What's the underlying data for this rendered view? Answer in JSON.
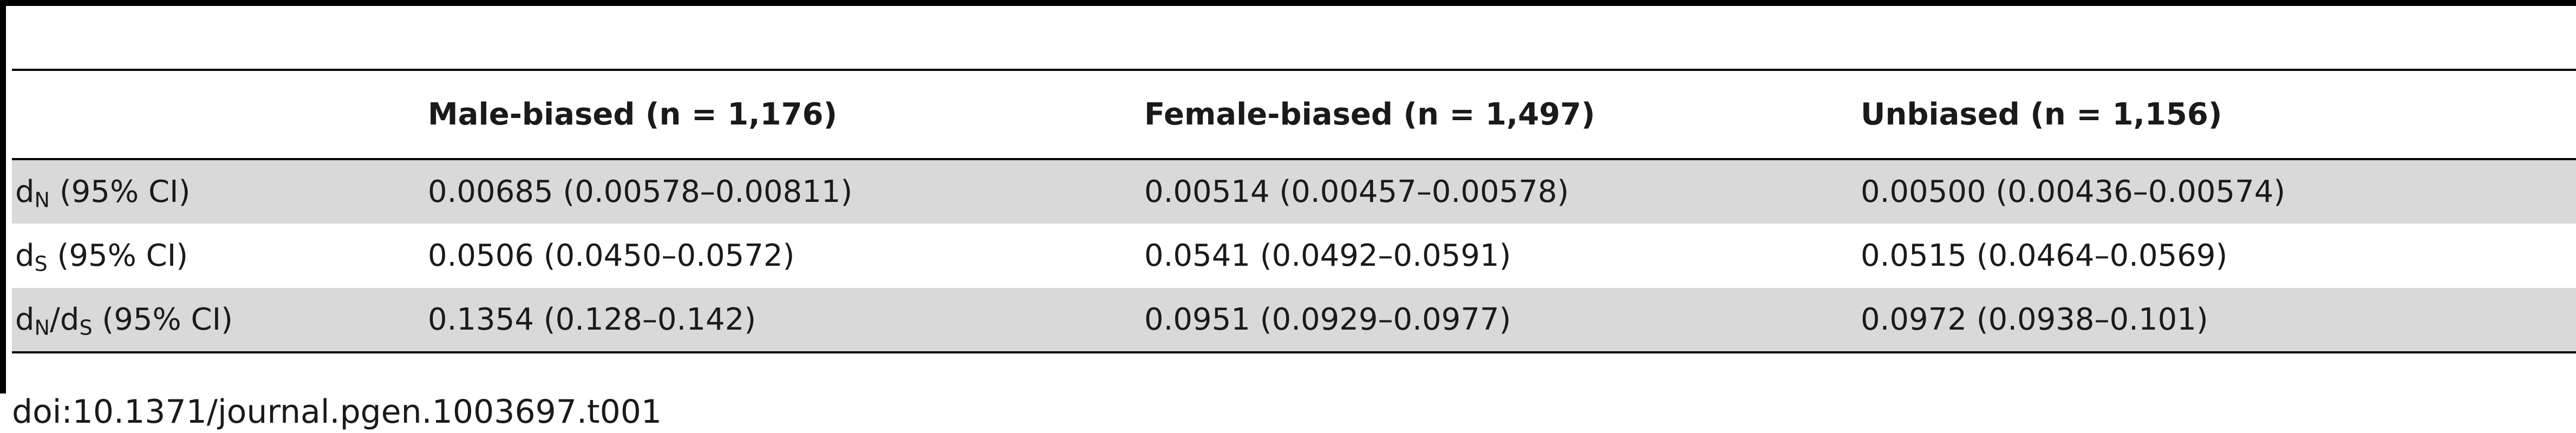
{
  "table": {
    "columns": [
      "",
      "Male-biased (n = 1,176)",
      "Female-biased (n = 1,497)",
      "Unbiased (n = 1,156)"
    ],
    "rows": [
      {
        "label_main": "d",
        "label_sub": "N",
        "label_rest": " (95% CI)",
        "values": [
          "0.00685 (0.00578–0.00811)",
          "0.00514 (0.00457–0.00578)",
          "0.00500 (0.00436–0.00574)"
        ]
      },
      {
        "label_main": "d",
        "label_sub": "S",
        "label_rest": " (95% CI)",
        "values": [
          "0.0506 (0.0450–0.0572)",
          "0.0541 (0.0492–0.0591)",
          "0.0515 (0.0464–0.0569)"
        ]
      },
      {
        "label_main": "d",
        "label_sub": "N",
        "label_mid": "/d",
        "label_sub2": "S",
        "label_rest": " (95% CI)",
        "values": [
          "0.1354 (0.128–0.142)",
          "0.0951 (0.0929–0.0977)",
          "0.0972 (0.0938–0.101)"
        ]
      }
    ]
  },
  "doi": "doi:10.1371/journal.pgen.1003697.t001"
}
